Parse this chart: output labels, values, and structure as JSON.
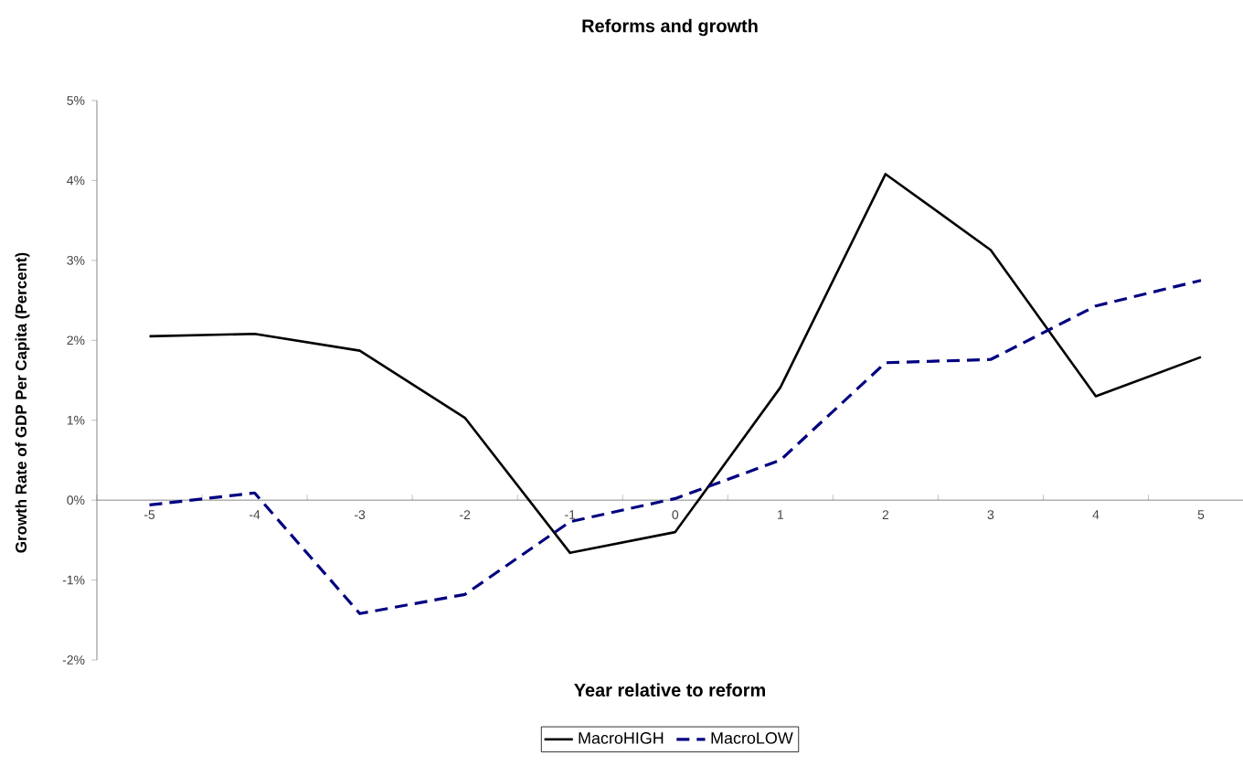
{
  "chart_data": {
    "type": "line",
    "title": "Reforms and growth",
    "xlabel": "Year relative to reform",
    "ylabel": "Growth Rate of GDP Per Capita (Percent)",
    "categories": [
      "-5",
      "-4",
      "-3",
      "-2",
      "-1",
      "0",
      "1",
      "2",
      "3",
      "4",
      "5"
    ],
    "series": [
      {
        "name": "MacroHIGH",
        "color": "#000000",
        "line_style": "solid",
        "values": [
          2.05,
          2.08,
          1.87,
          1.03,
          -0.66,
          -0.4,
          1.41,
          4.08,
          3.13,
          1.3,
          1.79
        ]
      },
      {
        "name": "MacroLOW",
        "color": "#000080",
        "line_style": "dashed",
        "values": [
          -0.06,
          0.09,
          -1.42,
          -1.18,
          -0.27,
          0.02,
          0.5,
          1.72,
          1.76,
          2.43,
          2.75
        ]
      }
    ],
    "ylim": [
      -2,
      5
    ],
    "yticks": [
      {
        "value": -2,
        "label": "-2%"
      },
      {
        "value": -1,
        "label": "-1%"
      },
      {
        "value": 0,
        "label": "0%"
      },
      {
        "value": 1,
        "label": "1%"
      },
      {
        "value": 2,
        "label": "2%"
      },
      {
        "value": 3,
        "label": "3%"
      },
      {
        "value": 4,
        "label": "4%"
      },
      {
        "value": 5,
        "label": "5%"
      }
    ],
    "grid": false,
    "legend": "bottom",
    "marker": "none"
  }
}
